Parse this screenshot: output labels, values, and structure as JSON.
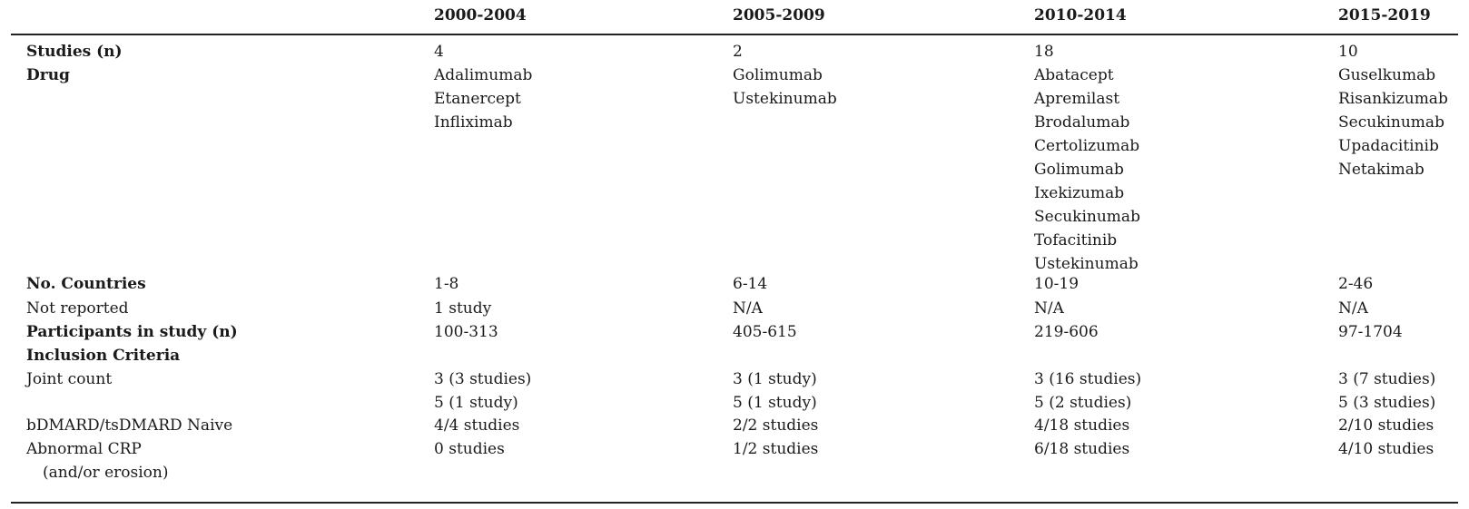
{
  "header": {
    "label": "",
    "periods": [
      "2000-2004",
      "2005-2009",
      "2010-2014",
      "2015-2019"
    ]
  },
  "rows": {
    "studies": {
      "label": "Studies (n)",
      "values": [
        "4",
        "2",
        "18",
        "10"
      ]
    },
    "drug": {
      "label": "Drug",
      "values": [
        [
          "Adalimumab",
          "Etanercept",
          "Infliximab"
        ],
        [
          "Golimumab",
          "Ustekinumab"
        ],
        [
          "Abatacept",
          "Apremilast",
          "Brodalumab",
          "Certolizumab",
          "Golimumab",
          "Ixekizumab",
          "Secukinumab",
          "Tofacitinib",
          "Ustekinumab"
        ],
        [
          "Guselkumab",
          "Risankizumab",
          "Secukinumab",
          "Upadacitinib",
          "Netakimab"
        ]
      ]
    },
    "countries": {
      "label": "No. Countries",
      "values": [
        "1-8",
        "6-14",
        "10-19",
        "2-46"
      ]
    },
    "not_reported": {
      "label": "Not reported",
      "values": [
        "1 study",
        "N/A",
        "N/A",
        "N/A"
      ]
    },
    "participants": {
      "label": "Participants in study (n)",
      "values": [
        "100-313",
        "405-615",
        "219-606",
        "97-1704"
      ]
    },
    "inclusion": {
      "label": "Inclusion Criteria"
    },
    "joint_count": {
      "label": "Joint count",
      "values": [
        [
          "3 (3 studies)",
          "5 (1 study)"
        ],
        [
          "3 (1 study)",
          "5 (1 study)"
        ],
        [
          "3 (16 studies)",
          "5 (2 studies)"
        ],
        [
          "3 (7 studies)",
          "5 (3 studies)"
        ]
      ]
    },
    "dmard_naive": {
      "label": "bDMARD/tsDMARD Naive",
      "values": [
        "4/4 studies",
        "2/2 studies",
        "4/18 studies",
        "2/10 studies"
      ]
    },
    "abnormal_crp": {
      "label": "Abnormal CRP",
      "label_line2": "(and/or erosion)",
      "values": [
        "0 studies",
        "1/2 studies",
        "6/18 studies",
        "4/10 studies"
      ]
    }
  }
}
